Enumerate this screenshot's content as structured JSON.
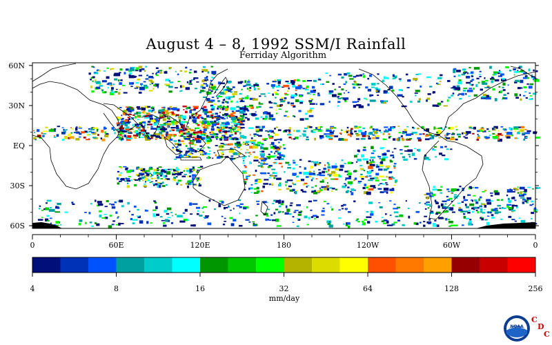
{
  "title": "August 4 – 8, 1992 SSM/I Rainfall",
  "subtitle": "Ferriday Algorithm",
  "map": {
    "lat_labels": [
      "60N",
      "30N",
      "EQ",
      "30S",
      "60S"
    ],
    "lat_values": [
      60,
      30,
      0,
      -30,
      -60
    ],
    "lon_labels": [
      "0",
      "60E",
      "120E",
      "180",
      "120W",
      "60W",
      "0"
    ],
    "lon_values": [
      0,
      60,
      120,
      180,
      240,
      300,
      360
    ],
    "lat_range": [
      -62,
      62
    ],
    "lon_range": [
      0,
      360
    ]
  },
  "colorbar": {
    "unit_label": "mm/day",
    "tick_labels": [
      "4",
      "8",
      "16",
      "32",
      "64",
      "128",
      "256"
    ],
    "colors": [
      "#000f7a",
      "#0032b8",
      "#0052ff",
      "#00a0a0",
      "#00cccc",
      "#00ffff",
      "#009600",
      "#00c800",
      "#00ff00",
      "#b4b400",
      "#dcdc00",
      "#ffff00",
      "#ff5000",
      "#ff7800",
      "#ffa000",
      "#960000",
      "#c80000",
      "#ff0000"
    ]
  },
  "logo": {
    "text": "NOAA",
    "cdc_letters": [
      "C",
      "D",
      "C"
    ]
  }
}
